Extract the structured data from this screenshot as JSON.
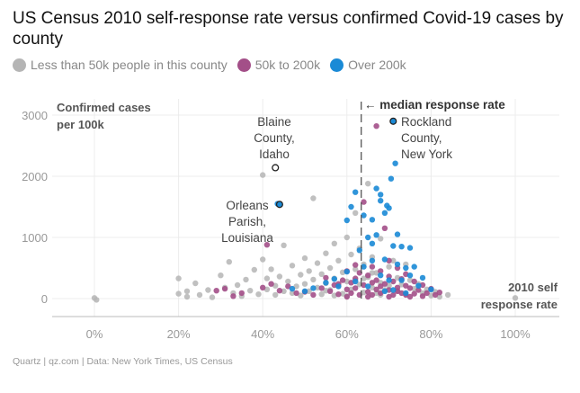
{
  "title": "US Census 2010 self-response rate versus confirmed Covid-19 cases by county",
  "legend": [
    {
      "label": "Less than 50k people in this county",
      "color": "#b5b5b5"
    },
    {
      "label": "50k to 200k",
      "color": "#a34f88"
    },
    {
      "label": "Over 200k",
      "color": "#1a8ad6"
    }
  ],
  "footer": "Quartz | qz.com | Data: New York Times, US Census",
  "chart_data": {
    "type": "scatter",
    "title": "US Census 2010 self-response rate versus confirmed Covid-19 cases by county",
    "xlabel": "2010 self response rate",
    "ylabel": "Confirmed cases per 100k",
    "xlim": [
      -0.1,
      1.1
    ],
    "ylim": [
      -300,
      3150
    ],
    "x_ticks": [
      0,
      0.2,
      0.4,
      0.6,
      0.8,
      1.0
    ],
    "x_tick_labels": [
      "0%",
      "20%",
      "40%",
      "60%",
      "80%",
      "100%"
    ],
    "y_ticks": [
      0,
      1000,
      2000,
      3000
    ],
    "y_tick_labels": [
      "0",
      "1000",
      "2000",
      "3000"
    ],
    "grid": true,
    "median_response_rate": 0.634,
    "median_label": "← median response rate",
    "series": [
      {
        "name": "Less than 50k people in this county",
        "color": "#b5b5b5",
        "points": [
          [
            0.0,
            10
          ],
          [
            0.005,
            -20
          ],
          [
            0.2,
            330
          ],
          [
            0.2,
            80
          ],
          [
            0.22,
            120
          ],
          [
            0.22,
            30
          ],
          [
            0.24,
            250
          ],
          [
            0.25,
            60
          ],
          [
            0.27,
            140
          ],
          [
            0.28,
            20
          ],
          [
            0.3,
            380
          ],
          [
            0.31,
            180
          ],
          [
            0.32,
            600
          ],
          [
            0.33,
            90
          ],
          [
            0.34,
            220
          ],
          [
            0.35,
            40
          ],
          [
            0.36,
            310
          ],
          [
            0.37,
            130
          ],
          [
            0.38,
            470
          ],
          [
            0.39,
            70
          ],
          [
            0.4,
            2020
          ],
          [
            0.4,
            640
          ],
          [
            0.41,
            330
          ],
          [
            0.41,
            150
          ],
          [
            0.42,
            480
          ],
          [
            0.43,
            210
          ],
          [
            0.43,
            60
          ],
          [
            0.44,
            360
          ],
          [
            0.45,
            870
          ],
          [
            0.45,
            120
          ],
          [
            0.46,
            280
          ],
          [
            0.47,
            540
          ],
          [
            0.47,
            90
          ],
          [
            0.48,
            200
          ],
          [
            0.49,
            390
          ],
          [
            0.49,
            50
          ],
          [
            0.5,
            660
          ],
          [
            0.5,
            240
          ],
          [
            0.51,
            120
          ],
          [
            0.51,
            450
          ],
          [
            0.52,
            1640
          ],
          [
            0.52,
            310
          ],
          [
            0.53,
            180
          ],
          [
            0.53,
            580
          ],
          [
            0.54,
            70
          ],
          [
            0.54,
            400
          ],
          [
            0.55,
            250
          ],
          [
            0.55,
            740
          ],
          [
            0.56,
            140
          ],
          [
            0.56,
            500
          ],
          [
            0.57,
            330
          ],
          [
            0.57,
            900
          ],
          [
            0.58,
            210
          ],
          [
            0.58,
            620
          ],
          [
            0.59,
            80
          ],
          [
            0.59,
            430
          ],
          [
            0.6,
            1000
          ],
          [
            0.6,
            280
          ],
          [
            0.61,
            720
          ],
          [
            0.61,
            150
          ],
          [
            0.62,
            1400
          ],
          [
            0.62,
            480
          ],
          [
            0.63,
            230
          ],
          [
            0.63,
            820
          ],
          [
            0.64,
            100
          ],
          [
            0.64,
            560
          ],
          [
            0.65,
            1880
          ],
          [
            0.65,
            350
          ],
          [
            0.66,
            180
          ],
          [
            0.66,
            680
          ],
          [
            0.67,
            420
          ],
          [
            0.67,
            90
          ],
          [
            0.68,
            260
          ],
          [
            0.68,
            980
          ],
          [
            0.69,
            140
          ],
          [
            0.7,
            520
          ],
          [
            0.7,
            210
          ],
          [
            0.71,
            620
          ],
          [
            0.72,
            130
          ],
          [
            0.72,
            340
          ],
          [
            0.73,
            230
          ],
          [
            0.74,
            560
          ],
          [
            0.74,
            80
          ],
          [
            0.75,
            300
          ],
          [
            0.76,
            160
          ],
          [
            0.77,
            240
          ],
          [
            0.78,
            90
          ],
          [
            0.79,
            150
          ],
          [
            0.8,
            50
          ],
          [
            0.81,
            110
          ],
          [
            0.82,
            30
          ],
          [
            0.84,
            60
          ],
          [
            0.66,
            420
          ],
          [
            0.62,
            300
          ],
          [
            0.58,
            200
          ],
          [
            0.55,
            130
          ],
          [
            0.6,
            40
          ],
          [
            0.64,
            330
          ],
          [
            0.68,
            60
          ],
          [
            0.57,
            50
          ],
          [
            1.0,
            10
          ]
        ]
      },
      {
        "name": "50k to 200k",
        "color": "#a34f88",
        "points": [
          [
            0.29,
            130
          ],
          [
            0.31,
            160
          ],
          [
            0.33,
            40
          ],
          [
            0.35,
            90
          ],
          [
            0.4,
            180
          ],
          [
            0.41,
            880
          ],
          [
            0.42,
            240
          ],
          [
            0.44,
            130
          ],
          [
            0.46,
            200
          ],
          [
            0.48,
            90
          ],
          [
            0.5,
            110
          ],
          [
            0.52,
            60
          ],
          [
            0.54,
            170
          ],
          [
            0.55,
            340
          ],
          [
            0.56,
            120
          ],
          [
            0.57,
            220
          ],
          [
            0.58,
            70
          ],
          [
            0.59,
            300
          ],
          [
            0.6,
            150
          ],
          [
            0.6,
            450
          ],
          [
            0.61,
            90
          ],
          [
            0.61,
            260
          ],
          [
            0.62,
            170
          ],
          [
            0.62,
            330
          ],
          [
            0.63,
            60
          ],
          [
            0.63,
            420
          ],
          [
            0.64,
            220
          ],
          [
            0.64,
            1580
          ],
          [
            0.65,
            110
          ],
          [
            0.65,
            380
          ],
          [
            0.66,
            260
          ],
          [
            0.66,
            60
          ],
          [
            0.67,
            2820
          ],
          [
            0.67,
            300
          ],
          [
            0.67,
            150
          ],
          [
            0.68,
            450
          ],
          [
            0.68,
            90
          ],
          [
            0.69,
            240
          ],
          [
            0.69,
            1150
          ],
          [
            0.7,
            360
          ],
          [
            0.7,
            140
          ],
          [
            0.71,
            60
          ],
          [
            0.71,
            280
          ],
          [
            0.72,
            500
          ],
          [
            0.72,
            180
          ],
          [
            0.73,
            90
          ],
          [
            0.73,
            320
          ],
          [
            0.74,
            210
          ],
          [
            0.74,
            60
          ],
          [
            0.75,
            170
          ],
          [
            0.76,
            280
          ],
          [
            0.76,
            80
          ],
          [
            0.77,
            140
          ],
          [
            0.78,
            220
          ],
          [
            0.79,
            90
          ],
          [
            0.8,
            160
          ],
          [
            0.81,
            60
          ],
          [
            0.82,
            100
          ],
          [
            0.6,
            30
          ],
          [
            0.65,
            30
          ],
          [
            0.7,
            30
          ],
          [
            0.75,
            30
          ],
          [
            0.78,
            40
          ],
          [
            0.68,
            200
          ],
          [
            0.72,
            120
          ],
          [
            0.66,
            520
          ],
          [
            0.7,
            620
          ],
          [
            0.74,
            400
          ],
          [
            0.62,
            550
          ],
          [
            0.58,
            240
          ]
        ]
      },
      {
        "name": "Over 200k",
        "color": "#1a8ad6",
        "points": [
          [
            0.435,
            1550
          ],
          [
            0.71,
            2900
          ],
          [
            0.715,
            2210
          ],
          [
            0.66,
            1290
          ],
          [
            0.67,
            1800
          ],
          [
            0.68,
            1700
          ],
          [
            0.695,
            1520
          ],
          [
            0.705,
            1960
          ],
          [
            0.72,
            1050
          ],
          [
            0.64,
            1360
          ],
          [
            0.65,
            1000
          ],
          [
            0.66,
            900
          ],
          [
            0.68,
            1600
          ],
          [
            0.69,
            1400
          ],
          [
            0.7,
            1480
          ],
          [
            0.73,
            850
          ],
          [
            0.75,
            830
          ],
          [
            0.63,
            790
          ],
          [
            0.6,
            1280
          ],
          [
            0.61,
            1500
          ],
          [
            0.62,
            1740
          ],
          [
            0.67,
            1040
          ],
          [
            0.71,
            860
          ],
          [
            0.69,
            640
          ],
          [
            0.72,
            560
          ],
          [
            0.74,
            500
          ],
          [
            0.76,
            520
          ],
          [
            0.78,
            340
          ],
          [
            0.66,
            620
          ],
          [
            0.64,
            520
          ],
          [
            0.62,
            280
          ],
          [
            0.65,
            200
          ],
          [
            0.68,
            380
          ],
          [
            0.7,
            300
          ],
          [
            0.73,
            300
          ],
          [
            0.75,
            380
          ],
          [
            0.77,
            210
          ],
          [
            0.6,
            440
          ],
          [
            0.58,
            200
          ],
          [
            0.57,
            320
          ],
          [
            0.55,
            260
          ],
          [
            0.5,
            120
          ],
          [
            0.47,
            160
          ],
          [
            0.52,
            170
          ],
          [
            0.8,
            150
          ],
          [
            0.74,
            90
          ],
          [
            0.71,
            140
          ],
          [
            0.69,
            120
          ]
        ]
      }
    ],
    "annotations": [
      {
        "label": "Blaine County, Idaho",
        "x": 0.43,
        "y": 2140
      },
      {
        "label": "Orleans Parish, Louisiana",
        "x": 0.44,
        "y": 1540
      },
      {
        "label": "Rockland County, New York",
        "x": 0.71,
        "y": 2900
      }
    ]
  }
}
